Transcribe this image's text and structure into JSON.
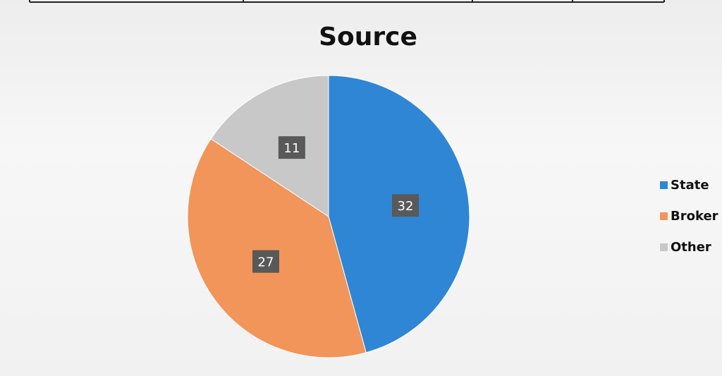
{
  "chart_data": {
    "type": "pie",
    "title": "Source",
    "categories": [
      "State",
      "Broker",
      "Other"
    ],
    "values": [
      32,
      27,
      11
    ],
    "colors": [
      "#2f86d4",
      "#f1955a",
      "#c8c8c8"
    ],
    "legend_position": "right",
    "data_labels": true,
    "label_box_color": "#595959"
  }
}
